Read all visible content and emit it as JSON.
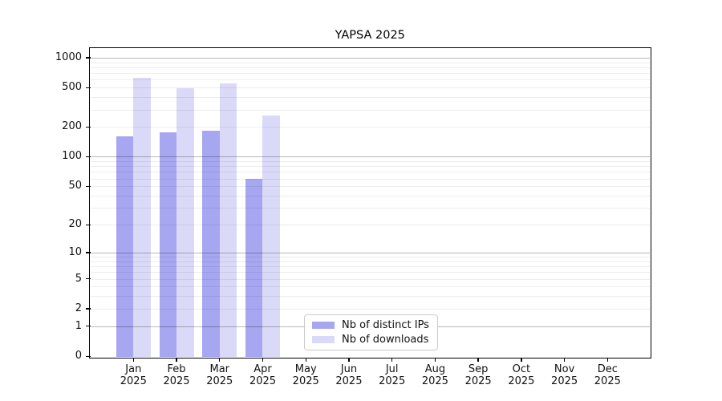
{
  "figure": {
    "title": "YAPSA 2025"
  },
  "chart_data": {
    "type": "bar",
    "title": "YAPSA 2025",
    "xlabel": "",
    "ylabel": "",
    "x_months": [
      "Jan",
      "Feb",
      "Mar",
      "Apr",
      "May",
      "Jun",
      "Jul",
      "Aug",
      "Sep",
      "Oct",
      "Nov",
      "Dec"
    ],
    "x_year": "2025",
    "series": [
      {
        "key": "distinct-ips",
        "name": "Nb of distinct IPs",
        "color": "#a6a6f1",
        "values": [
          160,
          177,
          184,
          60,
          null,
          null,
          null,
          null,
          null,
          null,
          null,
          null
        ]
      },
      {
        "key": "downloads",
        "name": "Nb of downloads",
        "color": "#dadaf8",
        "values": [
          630,
          497,
          547,
          262,
          null,
          null,
          null,
          null,
          null,
          null,
          null,
          null
        ]
      }
    ],
    "y_scale": "log10(value+1)",
    "y_tick_values": [
      0,
      1,
      2,
      5,
      10,
      20,
      50,
      100,
      200,
      500,
      1000
    ],
    "y_tick_labels": [
      "0",
      "1",
      "2",
      "5",
      "10",
      "20",
      "50",
      "100",
      "200",
      "500",
      "1000"
    ],
    "major_grid_values": [
      1,
      10,
      100,
      1000
    ],
    "ylim": [
      0,
      1250
    ],
    "grid": true,
    "legend_position": "lower center",
    "colors": {
      "major_grid": "#b8b8b8",
      "minor_grid": "#ececec",
      "axis": "#000000",
      "background": "#ffffff"
    }
  }
}
